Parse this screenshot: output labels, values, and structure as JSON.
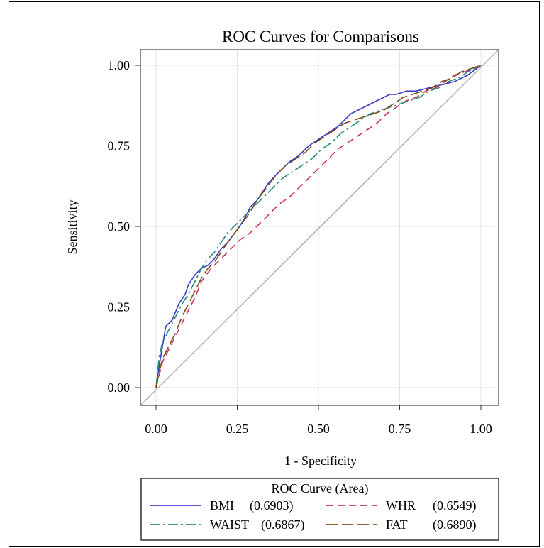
{
  "chart_data": {
    "type": "line",
    "title": "ROC Curves for Comparisons",
    "xlabel": "1 - Specificity",
    "ylabel": "Sensitivity",
    "xlim": [
      0,
      1
    ],
    "ylim": [
      0,
      1
    ],
    "xticks": [
      "0.00",
      "0.25",
      "0.50",
      "0.75",
      "1.00"
    ],
    "yticks": [
      "0.00",
      "0.25",
      "0.50",
      "0.75",
      "1.00"
    ],
    "grid": true,
    "legend": {
      "title": "ROC Curve (Area)",
      "placement": "bottom",
      "entries": [
        {
          "label": "BMI",
          "area": "(0.6903)"
        },
        {
          "label": "WHR",
          "area": "(0.6549)"
        },
        {
          "label": "WAIST",
          "area": "(0.6867)"
        },
        {
          "label": "FAT",
          "area": "(0.6890)"
        }
      ]
    },
    "reference_line": {
      "x": [
        0,
        1
      ],
      "y": [
        0,
        1
      ],
      "color": "#b0b0b0"
    },
    "series": [
      {
        "name": "BMI",
        "color": "#3a3acc",
        "dash": "solid",
        "x": [
          0.0,
          0.01,
          0.02,
          0.03,
          0.05,
          0.07,
          0.09,
          0.1,
          0.12,
          0.14,
          0.16,
          0.18,
          0.2,
          0.22,
          0.25,
          0.27,
          0.29,
          0.31,
          0.33,
          0.35,
          0.38,
          0.41,
          0.44,
          0.47,
          0.5,
          0.53,
          0.56,
          0.58,
          0.6,
          0.62,
          0.64,
          0.66,
          0.68,
          0.7,
          0.72,
          0.74,
          0.77,
          0.8,
          0.84,
          0.88,
          0.92,
          0.96,
          1.0
        ],
        "y": [
          0.0,
          0.07,
          0.13,
          0.19,
          0.21,
          0.26,
          0.29,
          0.32,
          0.35,
          0.37,
          0.38,
          0.4,
          0.43,
          0.45,
          0.49,
          0.52,
          0.56,
          0.58,
          0.61,
          0.64,
          0.67,
          0.7,
          0.72,
          0.75,
          0.77,
          0.79,
          0.81,
          0.83,
          0.85,
          0.86,
          0.87,
          0.88,
          0.89,
          0.9,
          0.91,
          0.91,
          0.92,
          0.92,
          0.93,
          0.94,
          0.95,
          0.97,
          1.0
        ]
      },
      {
        "name": "WHR",
        "color": "#cc3355",
        "dash": "10,6",
        "x": [
          0.0,
          0.01,
          0.02,
          0.04,
          0.06,
          0.08,
          0.1,
          0.12,
          0.14,
          0.17,
          0.2,
          0.23,
          0.26,
          0.29,
          0.32,
          0.35,
          0.38,
          0.41,
          0.44,
          0.47,
          0.5,
          0.53,
          0.56,
          0.59,
          0.62,
          0.65,
          0.68,
          0.71,
          0.74,
          0.77,
          0.8,
          0.83,
          0.86,
          0.89,
          0.92,
          0.95,
          0.98,
          1.0
        ],
        "y": [
          0.0,
          0.04,
          0.08,
          0.12,
          0.16,
          0.2,
          0.24,
          0.28,
          0.33,
          0.37,
          0.4,
          0.43,
          0.46,
          0.48,
          0.51,
          0.54,
          0.57,
          0.59,
          0.62,
          0.65,
          0.68,
          0.71,
          0.74,
          0.76,
          0.78,
          0.8,
          0.82,
          0.85,
          0.87,
          0.89,
          0.9,
          0.92,
          0.93,
          0.95,
          0.97,
          0.98,
          0.99,
          1.0
        ]
      },
      {
        "name": "WAIST",
        "color": "#2a8a7a",
        "dash": "14,4,3,4",
        "x": [
          0.0,
          0.01,
          0.02,
          0.04,
          0.06,
          0.08,
          0.1,
          0.12,
          0.14,
          0.16,
          0.18,
          0.2,
          0.22,
          0.24,
          0.26,
          0.28,
          0.3,
          0.33,
          0.36,
          0.39,
          0.42,
          0.45,
          0.48,
          0.51,
          0.54,
          0.57,
          0.6,
          0.63,
          0.66,
          0.69,
          0.72,
          0.75,
          0.78,
          0.81,
          0.84,
          0.87,
          0.9,
          0.93,
          0.96,
          1.0
        ],
        "y": [
          0.0,
          0.1,
          0.14,
          0.18,
          0.22,
          0.26,
          0.29,
          0.33,
          0.37,
          0.4,
          0.42,
          0.45,
          0.48,
          0.5,
          0.52,
          0.54,
          0.56,
          0.59,
          0.62,
          0.65,
          0.67,
          0.69,
          0.71,
          0.74,
          0.76,
          0.79,
          0.81,
          0.83,
          0.85,
          0.86,
          0.87,
          0.88,
          0.89,
          0.9,
          0.92,
          0.93,
          0.95,
          0.96,
          0.98,
          1.0
        ]
      },
      {
        "name": "FAT",
        "color": "#7a4a1a",
        "dash": "16,6",
        "x": [
          0.0,
          0.01,
          0.02,
          0.04,
          0.06,
          0.08,
          0.1,
          0.12,
          0.14,
          0.16,
          0.18,
          0.2,
          0.22,
          0.25,
          0.28,
          0.31,
          0.34,
          0.37,
          0.4,
          0.43,
          0.46,
          0.49,
          0.52,
          0.55,
          0.58,
          0.61,
          0.64,
          0.67,
          0.7,
          0.73,
          0.76,
          0.79,
          0.82,
          0.85,
          0.88,
          0.91,
          0.94,
          0.97,
          1.0
        ],
        "y": [
          0.0,
          0.05,
          0.09,
          0.13,
          0.17,
          0.22,
          0.26,
          0.3,
          0.34,
          0.37,
          0.39,
          0.42,
          0.45,
          0.49,
          0.53,
          0.58,
          0.62,
          0.66,
          0.69,
          0.71,
          0.73,
          0.76,
          0.78,
          0.8,
          0.82,
          0.83,
          0.84,
          0.85,
          0.86,
          0.88,
          0.9,
          0.91,
          0.92,
          0.93,
          0.95,
          0.96,
          0.98,
          0.99,
          1.0
        ]
      }
    ]
  }
}
